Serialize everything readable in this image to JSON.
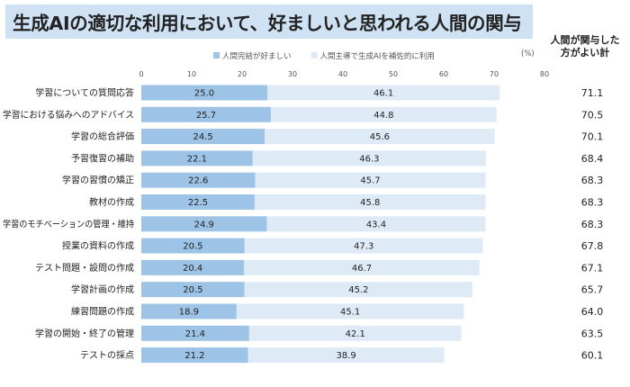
{
  "chart_data": {
    "type": "bar",
    "stacked": true,
    "orientation": "horizontal",
    "title": "生成AIの適切な利用において、好ましいと思われる人間の関与",
    "unit_label": "(%)",
    "total_header_line1": "人間が関与した",
    "total_header_line2": "方がよい計",
    "xlim": [
      0,
      80
    ],
    "xticks": [
      0,
      10,
      20,
      30,
      40,
      50,
      60,
      70,
      80
    ],
    "legend_position": "top",
    "categories": [
      "学習についての質問応答",
      "学習における悩みへのアドバイス",
      "学習の総合評価",
      "予習復習の補助",
      "学習の習慣の矯正",
      "教材の作成",
      "学習のモチベーションの管理・維持",
      "授業の資料の作成",
      "テスト問題・設問の作成",
      "学習計画の作成",
      "練習問題の作成",
      "学習の開始・終了の管理",
      "テストの採点"
    ],
    "series": [
      {
        "name": "人間完結が好ましい",
        "color": "#9dc3e6",
        "values": [
          25.0,
          25.7,
          24.5,
          22.1,
          22.6,
          22.5,
          24.9,
          20.5,
          20.4,
          20.5,
          18.9,
          21.4,
          21.2
        ],
        "labels": [
          "25.0",
          "25.7",
          "24.5",
          "22.1",
          "22.6",
          "22.5",
          "24.9",
          "20.5",
          "20.4",
          "20.5",
          "18.9",
          "21.4",
          "21.2"
        ]
      },
      {
        "name": "人間主導で生成AIを補佐的に利用",
        "color": "#deebf7",
        "values": [
          46.1,
          44.8,
          45.6,
          46.3,
          45.7,
          45.8,
          43.4,
          47.3,
          46.7,
          45.2,
          45.1,
          42.1,
          38.9
        ],
        "labels": [
          "46.1",
          "44.8",
          "45.6",
          "46.3",
          "45.7",
          "45.8",
          "43.4",
          "47.3",
          "46.7",
          "45.2",
          "45.1",
          "42.1",
          "38.9"
        ]
      }
    ],
    "totals": [
      "71.1",
      "70.5",
      "70.1",
      "68.4",
      "68.3",
      "68.3",
      "68.3",
      "67.8",
      "67.1",
      "65.7",
      "64.0",
      "63.5",
      "60.1"
    ]
  }
}
